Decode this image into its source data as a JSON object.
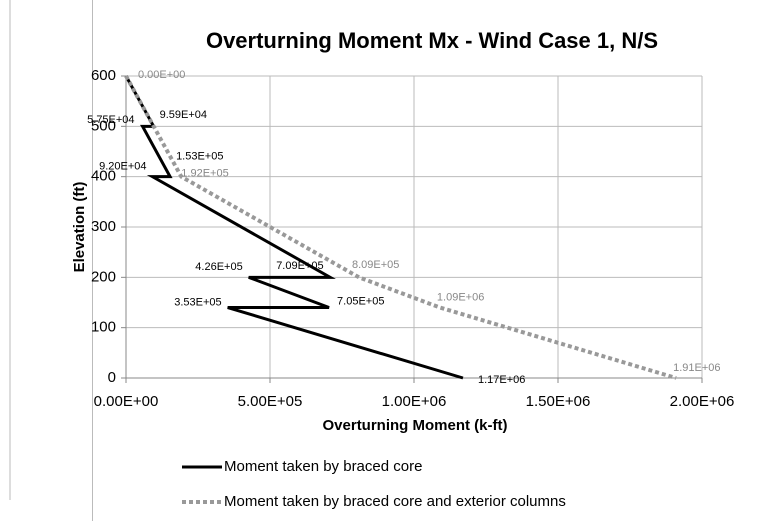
{
  "chart_data": {
    "type": "line",
    "title": "Overturning Moment Mx - Wind Case 1, N/S",
    "xlabel": "Overturning Moment (k-ft)",
    "ylabel": "Elevation (ft)",
    "xlim": [
      0,
      2000000
    ],
    "ylim": [
      0,
      600
    ],
    "xticks": [
      {
        "value": 0,
        "label": "0.00E+00"
      },
      {
        "value": 500000,
        "label": "5.00E+05"
      },
      {
        "value": 1000000,
        "label": "1.00E+06"
      },
      {
        "value": 1500000,
        "label": "1.50E+06"
      },
      {
        "value": 2000000,
        "label": "2.00E+06"
      }
    ],
    "yticks": [
      0,
      100,
      200,
      300,
      400,
      500,
      600
    ],
    "grid": true,
    "legend": "bottom",
    "series": [
      {
        "name": "Moment taken by braced core",
        "color": "#000000",
        "style": "solid",
        "x": [
          0,
          95900,
          57500,
          153000,
          92000,
          709000,
          426000,
          705000,
          353000,
          1170000
        ],
        "values": [
          600,
          500,
          500,
          400,
          400,
          200,
          200,
          140,
          140,
          0
        ],
        "x_labels": [
          null,
          "9.59E+04",
          "5.75E+04",
          "1.53E+05",
          "9.20E+04",
          "7.09E+05",
          "4.26E+05",
          "7.05E+05",
          "3.53E+05",
          "1.17E+06"
        ]
      },
      {
        "name": "Moment taken by braced core and exterior columns",
        "color": "#999999",
        "style": "dotted",
        "x": [
          0,
          192000,
          809000,
          1090000,
          1910000
        ],
        "values": [
          600,
          400,
          200,
          140,
          0
        ],
        "x_labels": [
          "0.00E+00",
          "1.92E+05",
          "8.09E+05",
          "1.09E+06",
          "1.91E+06"
        ]
      }
    ]
  }
}
